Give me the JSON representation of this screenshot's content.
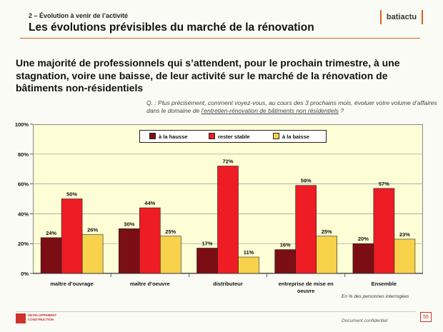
{
  "header": {
    "section_label": "2 – Évolution à venir de l’activité",
    "title": "Les évolutions prévisibles du marché de la rénovation",
    "brand": "batiactu"
  },
  "headline": "Une majorité de professionnels qui s’attendent, pour le prochain trimestre, à une stagnation, voire une baisse, de leur activité sur le marché de la rénovation de bâtiments non-résidentiels",
  "question": {
    "prefix": "Q. : Plus précisément, comment voyez-vous, au cours des 3 prochains mois, évoluer votre volume d’affaires dans le domaine de ",
    "underlined": "l’entretien-rénovation de bâtiments non résidentiels",
    "suffix": " ?"
  },
  "chart_data": {
    "type": "bar",
    "categories": [
      "maître d’ouvrage",
      "maître d’oeuvre",
      "distributeur",
      "entreprise de mise en oeuvre",
      "Ensemble"
    ],
    "series": [
      {
        "name": "à la hausse",
        "color": "#7a0e14",
        "values": [
          24,
          30,
          17,
          16,
          20
        ]
      },
      {
        "name": "rester stable",
        "color": "#ee1c25",
        "values": [
          50,
          44,
          72,
          59,
          57
        ]
      },
      {
        "name": "à la baisse",
        "color": "#f7d24a",
        "values": [
          26,
          25,
          11,
          25,
          23
        ]
      }
    ],
    "ylim": [
      0,
      100
    ],
    "yticks": [
      0,
      20,
      40,
      60,
      80,
      100
    ],
    "ytick_labels": [
      "0%",
      "20%",
      "40%",
      "60%",
      "80%",
      "100%"
    ],
    "data_labels": [
      [
        "24%",
        "30%",
        "17%",
        "16%",
        "20%"
      ],
      [
        "50%",
        "44%",
        "72%",
        "59%",
        "57%"
      ],
      [
        "26%",
        "25%",
        "11%",
        "25%",
        "23%"
      ]
    ],
    "legend_position": "top-center",
    "grid": true
  },
  "footer": {
    "note": "En % des personnes interrogées",
    "logo_line1": "DÉVELOPPEMENT",
    "logo_line2": "CONSTRUCTION",
    "confidential": "Document confidentiel",
    "page": "55"
  }
}
